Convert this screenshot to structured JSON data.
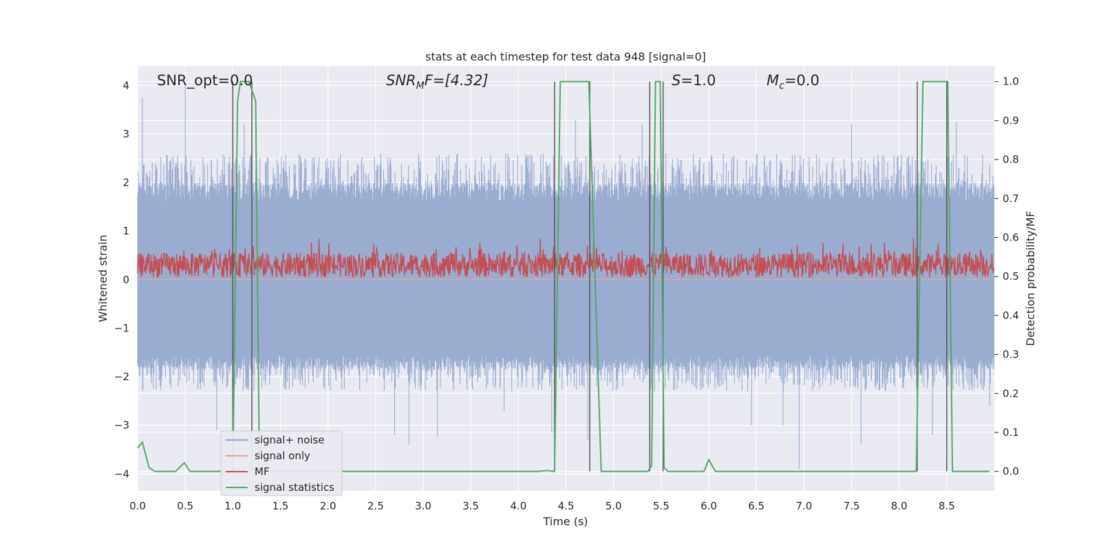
{
  "chart_data": {
    "type": "line",
    "title": "stats at each timestep for test data 948 [signal=0]",
    "xlabel": "Time (s)",
    "ylabel": "Whitened strain",
    "y2label": "Detection probability/MF",
    "xlim": [
      0.0,
      9.0
    ],
    "ylim": [
      -4.35,
      4.4
    ],
    "y2lim": [
      -0.05,
      1.04
    ],
    "x_ticks": [
      0.0,
      0.5,
      1.0,
      1.5,
      2.0,
      2.5,
      3.0,
      3.5,
      4.0,
      4.5,
      5.0,
      5.5,
      6.0,
      6.5,
      7.0,
      7.5,
      8.0,
      8.5
    ],
    "x_tick_labels": [
      "0.0",
      "0.5",
      "1.0",
      "1.5",
      "2.0",
      "2.5",
      "3.0",
      "3.5",
      "4.0",
      "4.5",
      "5.0",
      "5.5",
      "6.0",
      "6.5",
      "7.0",
      "7.5",
      "8.0",
      "8.5"
    ],
    "y_ticks": [
      4,
      3,
      2,
      1,
      0,
      -1,
      -2,
      -3,
      -4
    ],
    "y_tick_labels": [
      "4",
      "3",
      "2",
      "1",
      "0",
      "−1",
      "−2",
      "−3",
      "−4"
    ],
    "y2_ticks": [
      1.0,
      0.9,
      0.8,
      0.7,
      0.6,
      0.5,
      0.4,
      0.3,
      0.2,
      0.1,
      0.0
    ],
    "y2_tick_labels": [
      "1.0",
      "0.9",
      "0.8",
      "0.7",
      "0.6",
      "0.5",
      "0.4",
      "0.3",
      "0.2",
      "0.1",
      "0.0"
    ],
    "grid": true,
    "legend_location": "lower left",
    "annotations": {
      "snr_opt": "SNR_opt=0.0",
      "snr_mf_main": "SNR",
      "snr_mf_sub": "M",
      "snr_mf_rest": "F=[4.32]",
      "s_main": "S",
      "s_rest": "=1.0",
      "mc_main": "M",
      "mc_sub": "c",
      "mc_rest": "=0.0"
    },
    "colors": {
      "background": "#eaeaf2",
      "grid": "#ffffff",
      "noise": "#9aaccf",
      "signal_only": "#e8a98a",
      "mf": "#c44e52",
      "stats": "#55a868",
      "vlines": "#555555"
    },
    "series": [
      {
        "name": "signal+ noise",
        "axis": "left",
        "description_points": "dense noise; approximate envelope",
        "envelope_max": 2.6,
        "envelope_min": -2.3,
        "core_max": 1.6,
        "core_min": -1.55,
        "spikes": [
          [
            0.05,
            3.75
          ],
          [
            0.5,
            4.0
          ],
          [
            0.83,
            -3.1
          ],
          [
            1.0,
            -3.3
          ],
          [
            1.12,
            3.2
          ],
          [
            2.7,
            -3.2
          ],
          [
            2.85,
            -3.4
          ],
          [
            3.15,
            -3.25
          ],
          [
            3.85,
            -2.7
          ],
          [
            4.35,
            -3.15
          ],
          [
            4.6,
            3.3
          ],
          [
            4.73,
            -3.3
          ],
          [
            5.3,
            3.2
          ],
          [
            5.55,
            2.6
          ],
          [
            6.45,
            -3.0
          ],
          [
            6.78,
            -3.0
          ],
          [
            6.95,
            -3.9
          ],
          [
            7.5,
            3.2
          ],
          [
            7.6,
            -3.4
          ],
          [
            8.35,
            -3.2
          ],
          [
            8.6,
            3.25
          ],
          [
            8.95,
            -2.6
          ]
        ]
      },
      {
        "name": "signal only",
        "axis": "left",
        "values": "flat at 0"
      },
      {
        "name": "MF",
        "axis": "left",
        "band_min": 0.0,
        "band_max": 0.85,
        "typical_mean": 0.3
      },
      {
        "name": "signal statistics",
        "axis": "right",
        "x": [
          0.0,
          0.05,
          0.12,
          0.18,
          0.4,
          0.49,
          0.55,
          0.9,
          1.0,
          1.05,
          1.08,
          1.17,
          1.24,
          1.28,
          4.2,
          4.3,
          4.38,
          4.44,
          4.74,
          4.87,
          5.36,
          5.4,
          5.44,
          5.49,
          5.53,
          5.57,
          5.62,
          5.95,
          6.0,
          6.07,
          8.18,
          8.25,
          8.51,
          8.56,
          8.95
        ],
        "y": [
          0.06,
          0.075,
          0.01,
          0.0,
          0.0,
          0.022,
          0.0,
          0.0,
          0.0,
          0.95,
          1.0,
          1.0,
          0.95,
          0.0,
          0.0,
          0.002,
          0.0,
          1.0,
          1.0,
          0.0,
          0.0,
          0.015,
          1.0,
          1.0,
          0.01,
          0.0,
          0.0,
          0.0,
          0.03,
          0.0,
          0.0,
          1.0,
          1.0,
          0.0,
          0.0
        ]
      }
    ],
    "vertical_lines_x": [
      1.0,
      1.2,
      4.38,
      4.75,
      5.38,
      5.52,
      8.19,
      8.5
    ],
    "vertical_lines_range_right": [
      0.0,
      1.0
    ]
  }
}
